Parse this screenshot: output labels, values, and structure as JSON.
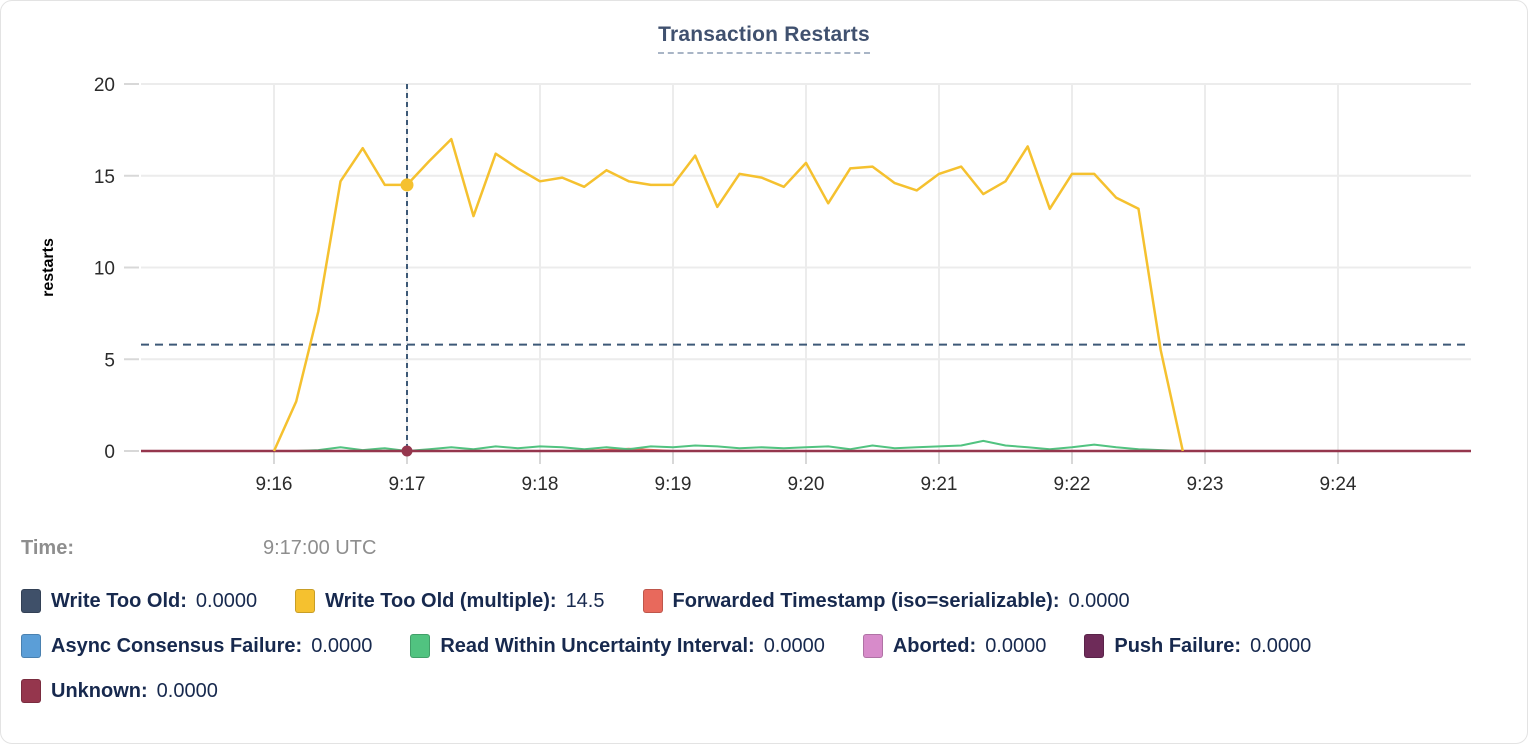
{
  "title": "Transaction Restarts",
  "hover": {
    "time_label": "Time:",
    "time_value": "9:17:00 UTC"
  },
  "colors": {
    "grid": "#ececec",
    "tick": "#d8d8d8",
    "axis_text": "#2b2b2b",
    "guide": "#3d5977",
    "title_text": "#40516f",
    "legend_text": "#17294e",
    "time_text": "#8e8e8e",
    "ylabel_text": "#000000"
  },
  "chart_data": {
    "type": "line",
    "title": "Transaction Restarts",
    "xlabel": "",
    "ylabel": "restarts",
    "ylim": [
      0,
      20
    ],
    "y_ticks": [
      0,
      5,
      10,
      15,
      20
    ],
    "grid": true,
    "legend_position": "bottom",
    "x_domain_seconds": [
      0,
      600
    ],
    "x_domain_time": [
      "9:15:00",
      "9:25:00"
    ],
    "x_ticks": [
      {
        "t": 60,
        "label": "9:16"
      },
      {
        "t": 120,
        "label": "9:17"
      },
      {
        "t": 180,
        "label": "9:18"
      },
      {
        "t": 240,
        "label": "9:19"
      },
      {
        "t": 300,
        "label": "9:20"
      },
      {
        "t": 360,
        "label": "9:21"
      },
      {
        "t": 420,
        "label": "9:22"
      },
      {
        "t": 480,
        "label": "9:23"
      },
      {
        "t": 540,
        "label": "9:24"
      }
    ],
    "threshold_line": {
      "value": 5.8,
      "style": "dashed"
    },
    "crosshair": {
      "t": 120,
      "time": "9:17:00 UTC"
    },
    "hover_dots": [
      {
        "series": 1,
        "value": 14.5,
        "r": 6.5
      },
      {
        "series": 7,
        "value": 0,
        "r": 5.5
      }
    ],
    "draw_order": [
      0,
      3,
      5,
      6,
      2,
      4,
      7,
      1
    ],
    "legend_rows": [
      [
        0,
        1,
        2
      ],
      [
        3,
        4,
        5,
        6
      ],
      [
        7
      ]
    ],
    "series": [
      {
        "name": "Write Too Old",
        "color": "#3f5069",
        "width": 2,
        "hover_value": "0.0000",
        "points": [
          [
            0,
            0
          ],
          [
            600,
            0
          ]
        ]
      },
      {
        "name": "Write Too Old (multiple)",
        "color": "#f5c12f",
        "width": 2.5,
        "hover_value": "14.5",
        "points": [
          [
            60,
            0
          ],
          [
            70,
            2.7
          ],
          [
            80,
            7.6
          ],
          [
            90,
            14.7
          ],
          [
            100,
            16.5
          ],
          [
            110,
            14.5
          ],
          [
            120,
            14.5
          ],
          [
            130,
            15.8
          ],
          [
            140,
            17.0
          ],
          [
            150,
            12.8
          ],
          [
            160,
            16.2
          ],
          [
            170,
            15.4
          ],
          [
            180,
            14.7
          ],
          [
            190,
            14.9
          ],
          [
            200,
            14.4
          ],
          [
            210,
            15.3
          ],
          [
            220,
            14.7
          ],
          [
            230,
            14.5
          ],
          [
            240,
            14.5
          ],
          [
            250,
            16.1
          ],
          [
            260,
            13.3
          ],
          [
            270,
            15.1
          ],
          [
            280,
            14.9
          ],
          [
            290,
            14.4
          ],
          [
            300,
            15.7
          ],
          [
            310,
            13.5
          ],
          [
            320,
            15.4
          ],
          [
            330,
            15.5
          ],
          [
            340,
            14.6
          ],
          [
            350,
            14.2
          ],
          [
            360,
            15.1
          ],
          [
            370,
            15.5
          ],
          [
            380,
            14.0
          ],
          [
            390,
            14.7
          ],
          [
            400,
            16.6
          ],
          [
            410,
            13.2
          ],
          [
            420,
            15.1
          ],
          [
            430,
            15.1
          ],
          [
            440,
            13.8
          ],
          [
            450,
            13.2
          ],
          [
            460,
            5.5
          ],
          [
            470,
            0
          ]
        ]
      },
      {
        "name": "Forwarded Timestamp (iso=serializable)",
        "color": "#e8695c",
        "width": 2,
        "hover_value": "0.0000",
        "points": [
          [
            0,
            0
          ],
          [
            200,
            0
          ],
          [
            210,
            0.06
          ],
          [
            220,
            0.12
          ],
          [
            230,
            0.06
          ],
          [
            240,
            0
          ],
          [
            600,
            0
          ]
        ]
      },
      {
        "name": "Async Consensus Failure",
        "color": "#5b9ed7",
        "width": 2,
        "hover_value": "0.0000",
        "points": [
          [
            0,
            0
          ],
          [
            600,
            0
          ]
        ]
      },
      {
        "name": "Read Within Uncertainty Interval",
        "color": "#51c380",
        "width": 2,
        "hover_value": "0.0000",
        "points": [
          [
            60,
            0
          ],
          [
            70,
            0
          ],
          [
            80,
            0.05
          ],
          [
            90,
            0.2
          ],
          [
            100,
            0.05
          ],
          [
            110,
            0.15
          ],
          [
            120,
            0
          ],
          [
            130,
            0.1
          ],
          [
            140,
            0.2
          ],
          [
            150,
            0.1
          ],
          [
            160,
            0.25
          ],
          [
            170,
            0.15
          ],
          [
            180,
            0.25
          ],
          [
            190,
            0.2
          ],
          [
            200,
            0.1
          ],
          [
            210,
            0.2
          ],
          [
            220,
            0.1
          ],
          [
            230,
            0.25
          ],
          [
            240,
            0.2
          ],
          [
            250,
            0.3
          ],
          [
            260,
            0.25
          ],
          [
            270,
            0.15
          ],
          [
            280,
            0.2
          ],
          [
            290,
            0.15
          ],
          [
            300,
            0.2
          ],
          [
            310,
            0.25
          ],
          [
            320,
            0.1
          ],
          [
            330,
            0.3
          ],
          [
            340,
            0.15
          ],
          [
            350,
            0.2
          ],
          [
            360,
            0.25
          ],
          [
            370,
            0.3
          ],
          [
            380,
            0.55
          ],
          [
            390,
            0.3
          ],
          [
            400,
            0.2
          ],
          [
            410,
            0.1
          ],
          [
            420,
            0.2
          ],
          [
            430,
            0.35
          ],
          [
            440,
            0.2
          ],
          [
            450,
            0.1
          ],
          [
            460,
            0.05
          ],
          [
            470,
            0
          ],
          [
            480,
            0
          ]
        ]
      },
      {
        "name": "Aborted",
        "color": "#d78bca",
        "width": 2,
        "hover_value": "0.0000",
        "points": [
          [
            0,
            0
          ],
          [
            600,
            0
          ]
        ]
      },
      {
        "name": "Push Failure",
        "color": "#6e2b59",
        "width": 2,
        "hover_value": "0.0000",
        "points": [
          [
            0,
            0
          ],
          [
            600,
            0
          ]
        ]
      },
      {
        "name": "Unknown",
        "color": "#95364d",
        "width": 2.5,
        "hover_value": "0.0000",
        "points": [
          [
            0,
            0
          ],
          [
            600,
            0
          ]
        ]
      }
    ]
  }
}
